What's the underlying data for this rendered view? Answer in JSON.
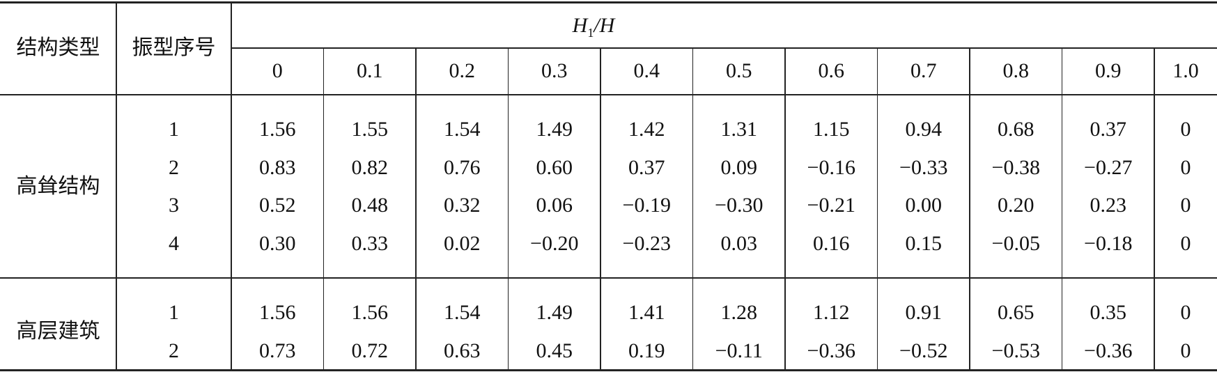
{
  "header": {
    "type_label": "结构类型",
    "mode_label": "振型序号",
    "ratio_label": {
      "symbol": "H",
      "sub": "1",
      "rest": "/H"
    },
    "ratios": [
      "0",
      "0.1",
      "0.2",
      "0.3",
      "0.4",
      "0.5",
      "0.6",
      "0.7",
      "0.8",
      "0.9",
      "1.0"
    ]
  },
  "groups": [
    {
      "type": "高耸结构",
      "rows": [
        [
          "1",
          "1.56",
          "1.55",
          "1.54",
          "1.49",
          "1.42",
          "1.31",
          "1.15",
          "0.94",
          "0.68",
          "0.37",
          "0"
        ],
        [
          "2",
          "0.83",
          "0.82",
          "0.76",
          "0.60",
          "0.37",
          "0.09",
          "−0.16",
          "−0.33",
          "−0.38",
          "−0.27",
          "0"
        ],
        [
          "3",
          "0.52",
          "0.48",
          "0.32",
          "0.06",
          "−0.19",
          "−0.30",
          "−0.21",
          "0.00",
          "0.20",
          "0.23",
          "0"
        ],
        [
          "4",
          "0.30",
          "0.33",
          "0.02",
          "−0.20",
          "−0.23",
          "0.03",
          "0.16",
          "0.15",
          "−0.05",
          "−0.18",
          "0"
        ]
      ]
    },
    {
      "type": "高层建筑",
      "rows": [
        [
          "1",
          "1.56",
          "1.56",
          "1.54",
          "1.49",
          "1.41",
          "1.28",
          "1.12",
          "0.91",
          "0.65",
          "0.35",
          "0"
        ],
        [
          "2",
          "0.73",
          "0.72",
          "0.63",
          "0.45",
          "0.19",
          "−0.11",
          "−0.36",
          "−0.52",
          "−0.53",
          "−0.36",
          "0"
        ]
      ]
    }
  ]
}
